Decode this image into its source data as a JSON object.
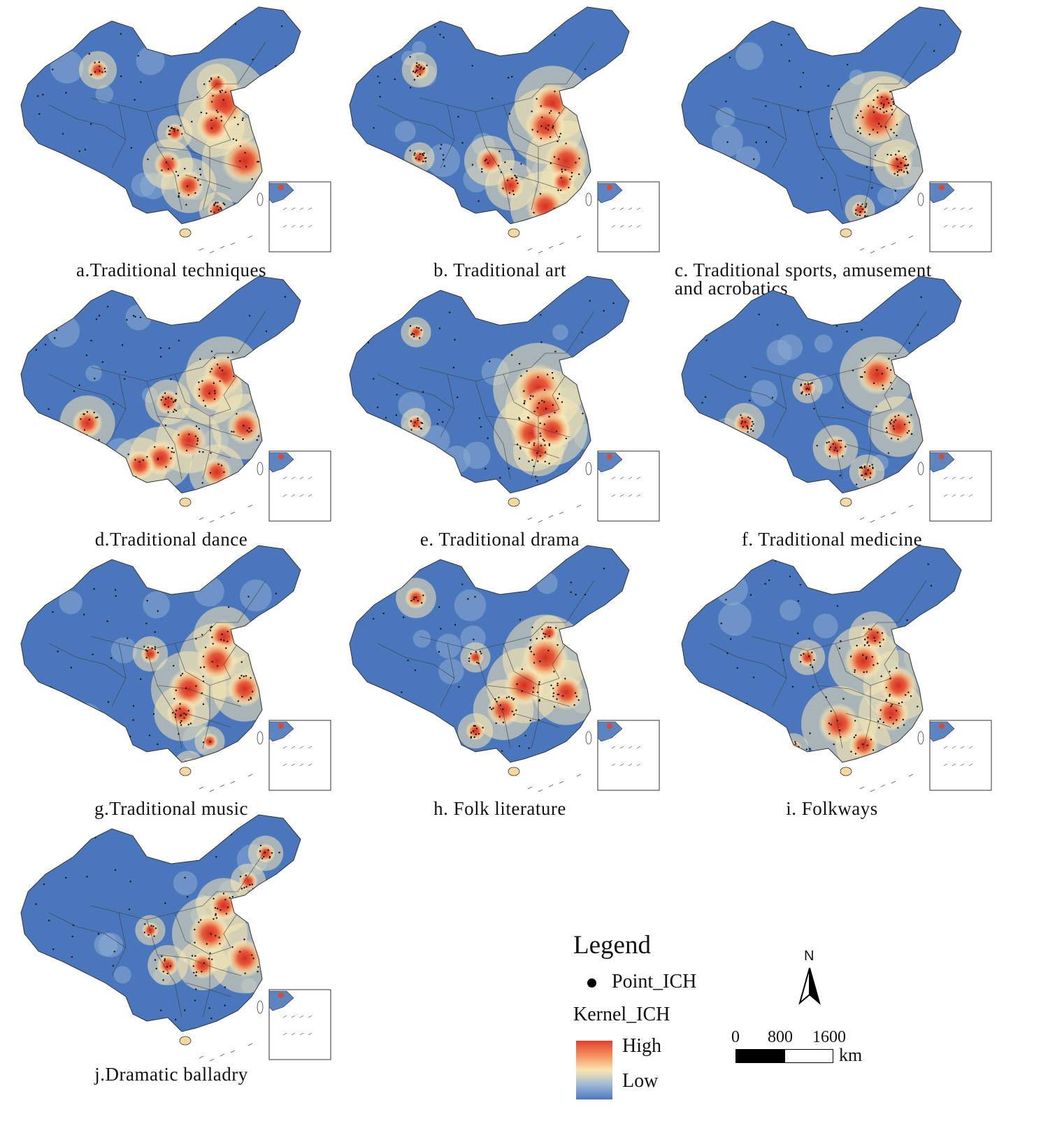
{
  "panels": [
    {
      "caption": "a.Traditional techniques"
    },
    {
      "caption": "b. Traditional art"
    },
    {
      "caption": "c. Traditional sports, amusement",
      "caption_line2": "and acrobatics"
    },
    {
      "caption": "d.Traditional dance"
    },
    {
      "caption": "e. Traditional drama"
    },
    {
      "caption": "f. Traditional medicine"
    },
    {
      "caption": "g.Traditional music"
    },
    {
      "caption": "h. Folk literature"
    },
    {
      "caption": "i. Folkways"
    },
    {
      "caption": "j.Dramatic balladry"
    }
  ],
  "legend": {
    "title": "Legend",
    "point_label": "Point_ICH",
    "kernel_label": "Kernel_ICH",
    "high_label": "High",
    "low_label": "Low",
    "ramp_colors": [
      "#e34030",
      "#f38f5e",
      "#fbe6b0",
      "#9db9d6",
      "#4a77bb"
    ]
  },
  "north_arrow": {
    "label": "N"
  },
  "scale_bar": {
    "ticks": [
      "0",
      "800",
      "1600"
    ],
    "unit": "km"
  },
  "colors": {
    "low": "#4a77bb",
    "high": "#d93a2b",
    "mid": "#f6e7b4"
  }
}
